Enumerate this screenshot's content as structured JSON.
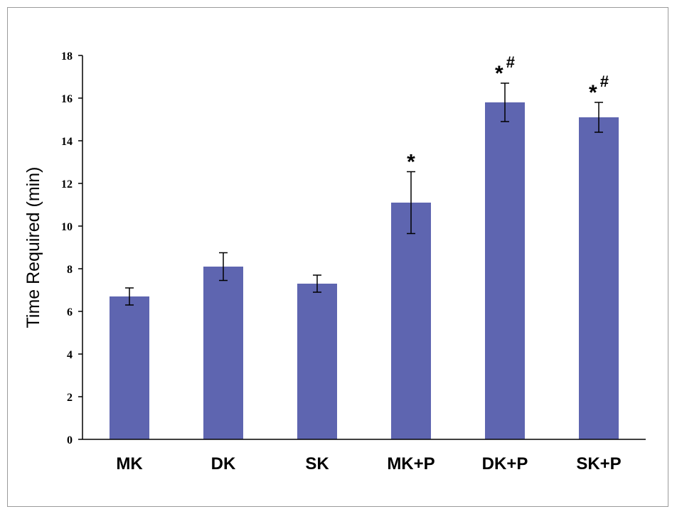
{
  "chart_data": {
    "type": "bar",
    "title": "",
    "xlabel": "",
    "ylabel": "Time Required (min)",
    "categories": [
      "MK",
      "DK",
      "SK",
      "MK+P",
      "DK+P",
      "SK+P"
    ],
    "values": [
      6.7,
      8.1,
      7.3,
      11.1,
      15.8,
      15.1
    ],
    "errors": [
      0.4,
      0.65,
      0.4,
      1.45,
      0.9,
      0.7
    ],
    "annotations": [
      "",
      "",
      "",
      "*",
      "* #",
      "* #"
    ],
    "ylim": [
      0,
      18
    ],
    "yticks": [
      0,
      2,
      4,
      6,
      8,
      10,
      12,
      14,
      16,
      18
    ],
    "grid": false,
    "legend": "none",
    "bar_color": "#5e65b0"
  }
}
